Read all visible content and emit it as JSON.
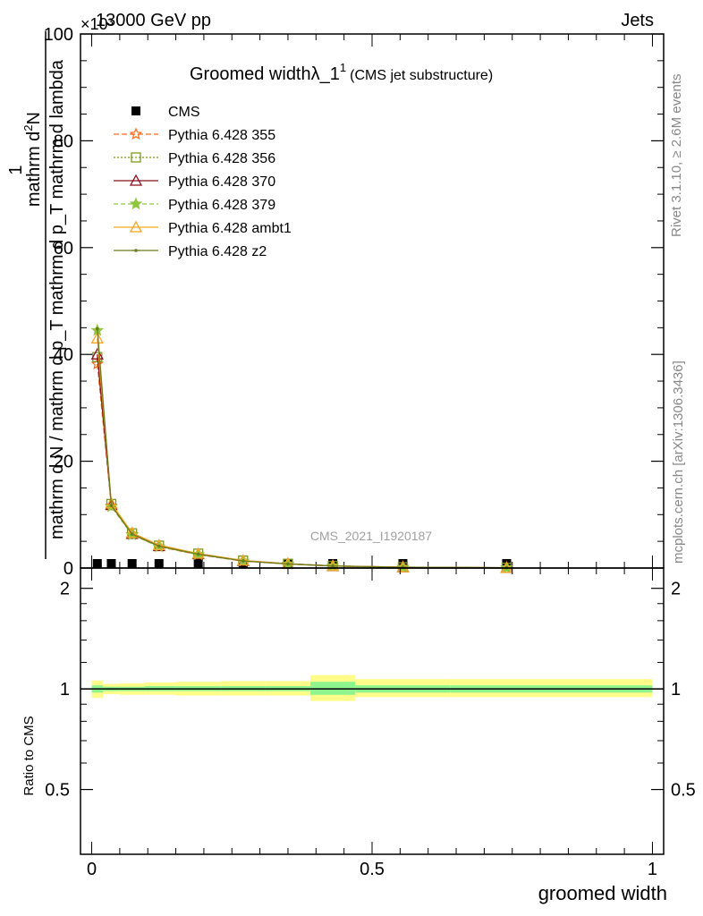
{
  "header": {
    "energy": "13000 GeV pp",
    "exponent": "×10³",
    "process": "Jets",
    "rivet": "Rivet 3.1.10, ≥ 2.6M events",
    "mcplots": "mcplots.cern.ch [arXiv:1306.3436]",
    "analysis": "CMS_2021_I1920187"
  },
  "title": {
    "main": "Groomed widthλ_1",
    "sup": "1",
    "sub": "(CMS jet substructure)"
  },
  "axes": {
    "ylabel_numerator": "1",
    "ylabel_numerator_text": "mathrm d",
    "ylabel_numerator_sup": "2",
    "ylabel_numerator_tail": "N",
    "ylabel_denominator": "mathrm d N / mathrm d p_T mathrm d p_T mathrm d lambda",
    "ratio_ylabel": "Ratio to CMS",
    "xlabel": "groomed width"
  },
  "chart_data": [
    {
      "type": "line",
      "panel": "main",
      "xlim": [
        -0.02,
        1.02
      ],
      "ylim": [
        0,
        100
      ],
      "y_multiplier": "10^3",
      "y_ticks": [
        0,
        20,
        40,
        60,
        80,
        100
      ],
      "y_tick_labels": [
        "0",
        "20",
        "40",
        "60",
        "80",
        "100"
      ],
      "x": [
        0.01,
        0.035,
        0.072,
        0.12,
        0.19,
        0.27,
        0.35,
        0.43,
        0.555,
        0.74
      ],
      "series": [
        {
          "name": "CMS",
          "color": "#000000",
          "marker": "square",
          "values": [
            0.18,
            0.16,
            0.13,
            0.11,
            0.08,
            0.05,
            0.03,
            0.02,
            0.008,
            0.003
          ]
        },
        {
          "name": "Pythia 6.428 355",
          "color": "#ff6a1a",
          "dash": "6,3",
          "marker": "star-open",
          "values": [
            38.2,
            11.6,
            6.3,
            4.0,
            2.5,
            1.3,
            0.75,
            0.38,
            0.15,
            0.05
          ]
        },
        {
          "name": "Pythia 6.428 356",
          "color": "#7a9a1f",
          "dash": "2,2",
          "marker": "square-open",
          "values": [
            39.5,
            12.0,
            6.5,
            4.2,
            2.7,
            1.4,
            0.8,
            0.4,
            0.16,
            0.05
          ]
        },
        {
          "name": "Pythia 6.428 370",
          "color": "#8b0f1f",
          "dash": "",
          "marker": "triangle-open",
          "values": [
            40.0,
            11.8,
            6.4,
            4.1,
            2.6,
            1.35,
            0.78,
            0.39,
            0.15,
            0.05
          ]
        },
        {
          "name": "Pythia 6.428 379",
          "color": "#8fc63d",
          "dash": "5,3",
          "marker": "star",
          "values": [
            44.5,
            11.5,
            6.2,
            4.0,
            2.55,
            1.3,
            0.75,
            0.37,
            0.15,
            0.05
          ]
        },
        {
          "name": "Pythia 6.428 ambt1",
          "color": "#f5a623",
          "dash": "",
          "marker": "triangle-open",
          "values": [
            43.0,
            12.1,
            6.6,
            4.3,
            2.7,
            1.42,
            0.82,
            0.41,
            0.16,
            0.05
          ]
        },
        {
          "name": "Pythia 6.428 z2",
          "color": "#6b7a1e",
          "dash": "",
          "marker": "dot",
          "values": [
            44.8,
            11.7,
            6.35,
            4.1,
            2.6,
            1.33,
            0.77,
            0.38,
            0.15,
            0.05
          ]
        }
      ]
    },
    {
      "type": "area",
      "panel": "ratio",
      "xlim": [
        -0.02,
        1.02
      ],
      "ylim": [
        0.32,
        2.3
      ],
      "y_ticks": [
        0.5,
        1,
        2
      ],
      "y_tick_labels": [
        "0.5",
        "1",
        "2"
      ],
      "x_ticks": [
        0,
        0.5,
        1
      ],
      "x_tick_labels": [
        "0",
        "0.5",
        "1"
      ],
      "band_edges": [
        0,
        0.02,
        0.05,
        0.095,
        0.15,
        0.23,
        0.31,
        0.39,
        0.47,
        0.64,
        1.0
      ],
      "inner_band": [
        [
          0.975,
          1.025
        ],
        [
          0.985,
          1.015
        ],
        [
          0.985,
          1.015
        ],
        [
          0.985,
          1.02
        ],
        [
          0.985,
          1.02
        ],
        [
          0.985,
          1.02
        ],
        [
          0.985,
          1.02
        ],
        [
          0.96,
          1.05
        ],
        [
          0.975,
          1.025
        ],
        [
          0.975,
          1.025
        ]
      ],
      "outer_band": [
        [
          0.94,
          1.06
        ],
        [
          0.965,
          1.035
        ],
        [
          0.96,
          1.04
        ],
        [
          0.96,
          1.045
        ],
        [
          0.955,
          1.05
        ],
        [
          0.955,
          1.055
        ],
        [
          0.955,
          1.055
        ],
        [
          0.92,
          1.1
        ],
        [
          0.945,
          1.07
        ],
        [
          0.945,
          1.07
        ]
      ],
      "ratio_line": 1,
      "inner_color": "#8ef58e",
      "outer_color": "#fffc8a"
    }
  ]
}
